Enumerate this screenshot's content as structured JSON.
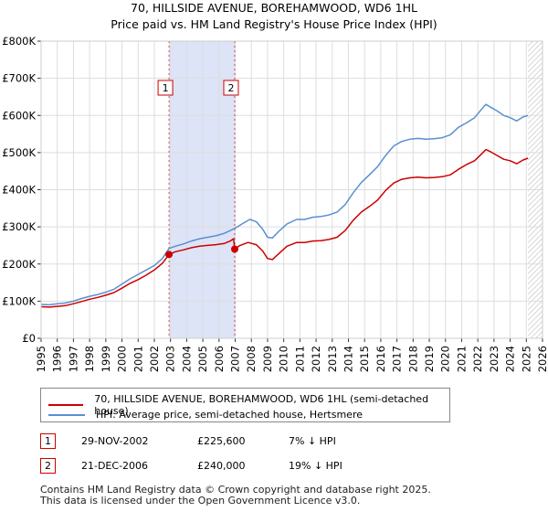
{
  "chart_data": {
    "type": "line",
    "title": "70, HILLSIDE AVENUE, BOREHAMWOOD, WD6 1HL",
    "subtitle": "Price paid vs. HM Land Registry's House Price Index (HPI)",
    "xlim": [
      1995,
      2026
    ],
    "ylim": [
      0,
      800000
    ],
    "x_ticks": [
      "1995",
      "1996",
      "1997",
      "1998",
      "1999",
      "2000",
      "2001",
      "2002",
      "2003",
      "2004",
      "2005",
      "2006",
      "2007",
      "2008",
      "2009",
      "2010",
      "2011",
      "2012",
      "2013",
      "2014",
      "2015",
      "2016",
      "2017",
      "2018",
      "2019",
      "2020",
      "2021",
      "2022",
      "2023",
      "2024",
      "2025",
      "2026"
    ],
    "y_ticks": [
      {
        "value": 0,
        "label": "£0"
      },
      {
        "value": 100000,
        "label": "£100K"
      },
      {
        "value": 200000,
        "label": "£200K"
      },
      {
        "value": 300000,
        "label": "£300K"
      },
      {
        "value": 400000,
        "label": "£400K"
      },
      {
        "value": 500000,
        "label": "£500K"
      },
      {
        "value": 600000,
        "label": "£600K"
      },
      {
        "value": 700000,
        "label": "£700K"
      },
      {
        "value": 800000,
        "label": "£800K"
      }
    ],
    "shaded_region": {
      "from": 2002.91,
      "to": 2006.97,
      "color": "#dde4f7"
    },
    "future_hatch_from": 2025.1,
    "series": [
      {
        "name": "70, HILLSIDE AVENUE, BOREHAMWOOD, WD6 1HL (semi-detached house)",
        "color": "#cc0000",
        "points": [
          [
            1995.0,
            85000
          ],
          [
            1995.5,
            84000
          ],
          [
            1996.0,
            86000
          ],
          [
            1996.5,
            88000
          ],
          [
            1997.0,
            93000
          ],
          [
            1997.5,
            99000
          ],
          [
            1998.0,
            105000
          ],
          [
            1998.5,
            110000
          ],
          [
            1999.0,
            116000
          ],
          [
            1999.5,
            123000
          ],
          [
            2000.0,
            135000
          ],
          [
            2000.5,
            148000
          ],
          [
            2001.0,
            158000
          ],
          [
            2001.5,
            170000
          ],
          [
            2002.0,
            184000
          ],
          [
            2002.5,
            202000
          ],
          [
            2002.91,
            225600
          ],
          [
            2003.3,
            233000
          ],
          [
            2003.8,
            238000
          ],
          [
            2004.3,
            244000
          ],
          [
            2004.8,
            248000
          ],
          [
            2005.3,
            250000
          ],
          [
            2005.8,
            252000
          ],
          [
            2006.3,
            255000
          ],
          [
            2006.7,
            262000
          ],
          [
            2006.9,
            268000
          ],
          [
            2006.97,
            240000
          ],
          [
            2007.3,
            250000
          ],
          [
            2007.8,
            258000
          ],
          [
            2008.3,
            252000
          ],
          [
            2008.7,
            235000
          ],
          [
            2009.0,
            215000
          ],
          [
            2009.3,
            212000
          ],
          [
            2009.7,
            228000
          ],
          [
            2010.2,
            248000
          ],
          [
            2010.8,
            258000
          ],
          [
            2011.3,
            258000
          ],
          [
            2011.8,
            262000
          ],
          [
            2012.3,
            263000
          ],
          [
            2012.8,
            266000
          ],
          [
            2013.3,
            272000
          ],
          [
            2013.8,
            290000
          ],
          [
            2014.3,
            318000
          ],
          [
            2014.8,
            340000
          ],
          [
            2015.3,
            355000
          ],
          [
            2015.8,
            372000
          ],
          [
            2016.3,
            398000
          ],
          [
            2016.8,
            418000
          ],
          [
            2017.3,
            428000
          ],
          [
            2017.8,
            432000
          ],
          [
            2018.3,
            434000
          ],
          [
            2018.8,
            432000
          ],
          [
            2019.3,
            433000
          ],
          [
            2019.8,
            435000
          ],
          [
            2020.3,
            440000
          ],
          [
            2020.8,
            455000
          ],
          [
            2021.3,
            468000
          ],
          [
            2021.8,
            478000
          ],
          [
            2022.2,
            495000
          ],
          [
            2022.5,
            508000
          ],
          [
            2022.8,
            502000
          ],
          [
            2023.2,
            492000
          ],
          [
            2023.6,
            482000
          ],
          [
            2024.0,
            478000
          ],
          [
            2024.4,
            470000
          ],
          [
            2024.8,
            480000
          ],
          [
            2025.1,
            485000
          ]
        ]
      },
      {
        "name": "HPI: Average price, semi-detached house, Hertsmere",
        "color": "#5b8fd0",
        "points": [
          [
            1995.0,
            91000
          ],
          [
            1995.5,
            90000
          ],
          [
            1996.0,
            93000
          ],
          [
            1996.5,
            95000
          ],
          [
            1997.0,
            100000
          ],
          [
            1997.5,
            107000
          ],
          [
            1998.0,
            113000
          ],
          [
            1998.5,
            118000
          ],
          [
            1999.0,
            124000
          ],
          [
            1999.5,
            132000
          ],
          [
            2000.0,
            146000
          ],
          [
            2000.5,
            160000
          ],
          [
            2001.0,
            172000
          ],
          [
            2001.5,
            184000
          ],
          [
            2002.0,
            196000
          ],
          [
            2002.5,
            215000
          ],
          [
            2002.91,
            242000
          ],
          [
            2003.3,
            248000
          ],
          [
            2003.8,
            254000
          ],
          [
            2004.3,
            262000
          ],
          [
            2004.8,
            268000
          ],
          [
            2005.3,
            272000
          ],
          [
            2005.8,
            276000
          ],
          [
            2006.3,
            282000
          ],
          [
            2006.97,
            296000
          ],
          [
            2007.5,
            310000
          ],
          [
            2007.9,
            320000
          ],
          [
            2008.3,
            314000
          ],
          [
            2008.7,
            294000
          ],
          [
            2009.0,
            272000
          ],
          [
            2009.3,
            270000
          ],
          [
            2009.7,
            288000
          ],
          [
            2010.2,
            308000
          ],
          [
            2010.8,
            320000
          ],
          [
            2011.3,
            320000
          ],
          [
            2011.8,
            326000
          ],
          [
            2012.3,
            328000
          ],
          [
            2012.8,
            332000
          ],
          [
            2013.3,
            340000
          ],
          [
            2013.8,
            360000
          ],
          [
            2014.3,
            392000
          ],
          [
            2014.8,
            420000
          ],
          [
            2015.3,
            440000
          ],
          [
            2015.8,
            462000
          ],
          [
            2016.3,
            492000
          ],
          [
            2016.8,
            518000
          ],
          [
            2017.3,
            530000
          ],
          [
            2017.8,
            536000
          ],
          [
            2018.3,
            538000
          ],
          [
            2018.8,
            536000
          ],
          [
            2019.3,
            537000
          ],
          [
            2019.8,
            540000
          ],
          [
            2020.3,
            548000
          ],
          [
            2020.8,
            568000
          ],
          [
            2021.3,
            580000
          ],
          [
            2021.8,
            594000
          ],
          [
            2022.2,
            615000
          ],
          [
            2022.5,
            630000
          ],
          [
            2022.8,
            622000
          ],
          [
            2023.2,
            612000
          ],
          [
            2023.6,
            600000
          ],
          [
            2024.0,
            594000
          ],
          [
            2024.4,
            585000
          ],
          [
            2024.8,
            596000
          ],
          [
            2025.1,
            600000
          ]
        ]
      }
    ],
    "markers": [
      {
        "label": "1",
        "x": 2002.91,
        "y": 225600
      },
      {
        "label": "2",
        "x": 2006.97,
        "y": 240000
      }
    ]
  },
  "legend": [
    {
      "label": "70, HILLSIDE AVENUE, BOREHAMWOOD, WD6 1HL (semi-detached house)",
      "color": "#cc0000"
    },
    {
      "label": "HPI: Average price, semi-detached house, Hertsmere",
      "color": "#5b8fd0"
    }
  ],
  "sales": [
    {
      "num": "1",
      "date": "29-NOV-2002",
      "price": "£225,600",
      "hpi": "7% ↓ HPI"
    },
    {
      "num": "2",
      "date": "21-DEC-2006",
      "price": "£240,000",
      "hpi": "19% ↓ HPI"
    }
  ],
  "footer": {
    "line1": "Contains HM Land Registry data © Crown copyright and database right 2025.",
    "line2": "This data is licensed under the Open Government Licence v3.0."
  }
}
